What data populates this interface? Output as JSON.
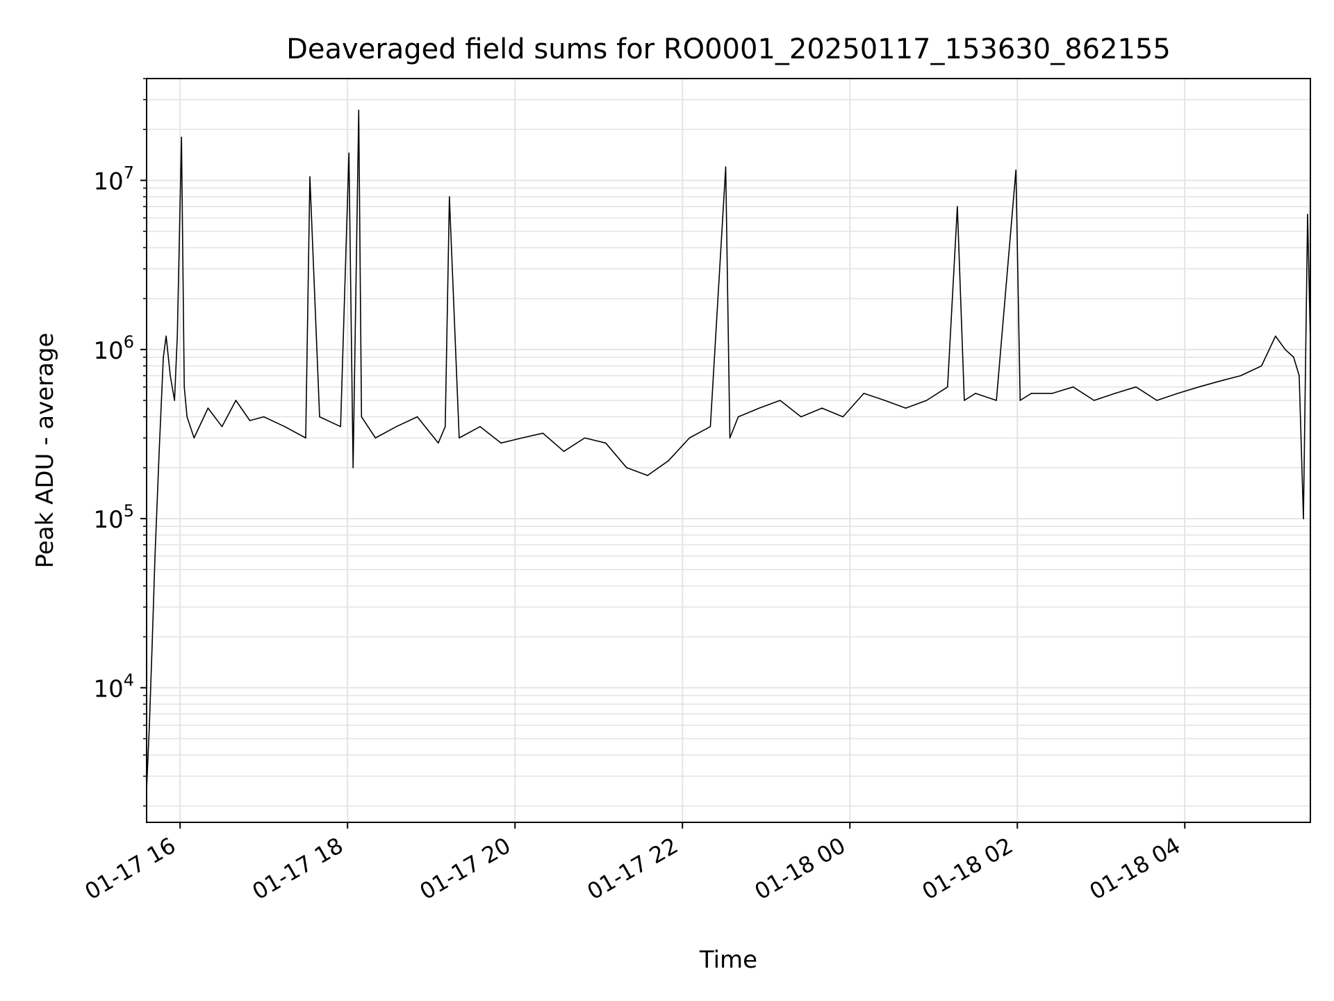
{
  "chart_data": {
    "type": "line",
    "title": "Deaveraged field sums for RO0001_20250117_153630_862155",
    "xlabel": "Time",
    "ylabel": "Peak ADU - average",
    "y_scale": "log",
    "ylim": [
      1600,
      40000000
    ],
    "xlim": [
      "2025-01-17 15:36",
      "2025-01-18 05:30"
    ],
    "grid": true,
    "line_color": "#000000",
    "x_ticks": [
      {
        "value": "2025-01-17 16:00",
        "label": "01-17 16"
      },
      {
        "value": "2025-01-17 18:00",
        "label": "01-17 18"
      },
      {
        "value": "2025-01-17 20:00",
        "label": "01-17 20"
      },
      {
        "value": "2025-01-17 22:00",
        "label": "01-17 22"
      },
      {
        "value": "2025-01-18 00:00",
        "label": "01-18 00"
      },
      {
        "value": "2025-01-18 02:00",
        "label": "01-18 02"
      },
      {
        "value": "2025-01-18 04:00",
        "label": "01-18 04"
      }
    ],
    "y_ticks": [
      {
        "value": 10000,
        "base": "10",
        "exp": "4"
      },
      {
        "value": 100000,
        "base": "10",
        "exp": "5"
      },
      {
        "value": 1000000,
        "base": "10",
        "exp": "6"
      },
      {
        "value": 10000000,
        "base": "10",
        "exp": "7"
      }
    ],
    "series": [
      {
        "x": [
          "2025-01-17 15:36",
          "2025-01-17 15:38",
          "2025-01-17 15:40",
          "2025-01-17 15:42",
          "2025-01-17 15:45",
          "2025-01-17 15:48",
          "2025-01-17 15:50",
          "2025-01-17 15:53",
          "2025-01-17 15:56",
          "2025-01-17 15:58",
          "2025-01-17 16:01",
          "2025-01-17 16:03",
          "2025-01-17 16:05",
          "2025-01-17 16:10",
          "2025-01-17 16:20",
          "2025-01-17 16:30",
          "2025-01-17 16:40",
          "2025-01-17 16:50",
          "2025-01-17 17:00",
          "2025-01-17 17:15",
          "2025-01-17 17:30",
          "2025-01-17 17:33",
          "2025-01-17 17:40",
          "2025-01-17 17:55",
          "2025-01-17 18:01",
          "2025-01-17 18:04",
          "2025-01-17 18:08",
          "2025-01-17 18:10",
          "2025-01-17 18:20",
          "2025-01-17 18:35",
          "2025-01-17 18:50",
          "2025-01-17 19:05",
          "2025-01-17 19:10",
          "2025-01-17 19:13",
          "2025-01-17 19:20",
          "2025-01-17 19:35",
          "2025-01-17 19:50",
          "2025-01-17 20:05",
          "2025-01-17 20:20",
          "2025-01-17 20:35",
          "2025-01-17 20:50",
          "2025-01-17 21:05",
          "2025-01-17 21:20",
          "2025-01-17 21:35",
          "2025-01-17 21:50",
          "2025-01-17 22:05",
          "2025-01-17 22:20",
          "2025-01-17 22:31",
          "2025-01-17 22:34",
          "2025-01-17 22:40",
          "2025-01-17 22:55",
          "2025-01-17 23:10",
          "2025-01-17 23:25",
          "2025-01-17 23:40",
          "2025-01-17 23:55",
          "2025-01-18 00:10",
          "2025-01-18 00:25",
          "2025-01-18 00:40",
          "2025-01-18 00:55",
          "2025-01-18 01:10",
          "2025-01-18 01:17",
          "2025-01-18 01:22",
          "2025-01-18 01:30",
          "2025-01-18 01:45",
          "2025-01-18 01:59",
          "2025-01-18 02:02",
          "2025-01-18 02:10",
          "2025-01-18 02:25",
          "2025-01-18 02:40",
          "2025-01-18 02:55",
          "2025-01-18 03:10",
          "2025-01-18 03:25",
          "2025-01-18 03:40",
          "2025-01-18 03:55",
          "2025-01-18 04:10",
          "2025-01-18 04:25",
          "2025-01-18 04:40",
          "2025-01-18 04:55",
          "2025-01-18 05:05",
          "2025-01-18 05:12",
          "2025-01-18 05:18",
          "2025-01-18 05:22",
          "2025-01-18 05:25",
          "2025-01-18 05:28",
          "2025-01-18 05:30"
        ],
        "y": [
          2500,
          6000,
          18000,
          60000,
          250000,
          900000,
          1200000,
          700000,
          500000,
          1200000,
          18000000,
          600000,
          400000,
          300000,
          450000,
          350000,
          500000,
          380000,
          400000,
          350000,
          300000,
          10500000,
          400000,
          350000,
          14500000,
          200000,
          26000000,
          400000,
          300000,
          350000,
          400000,
          280000,
          350000,
          8000000,
          300000,
          350000,
          280000,
          300000,
          320000,
          250000,
          300000,
          280000,
          200000,
          180000,
          220000,
          300000,
          350000,
          12000000,
          300000,
          400000,
          450000,
          500000,
          400000,
          450000,
          400000,
          550000,
          500000,
          450000,
          500000,
          600000,
          7000000,
          500000,
          550000,
          500000,
          11500000,
          500000,
          550000,
          550000,
          600000,
          500000,
          550000,
          600000,
          500000,
          550000,
          600000,
          650000,
          700000,
          800000,
          1200000,
          1000000,
          900000,
          700000,
          100000,
          6300000,
          1100000
        ]
      }
    ]
  }
}
